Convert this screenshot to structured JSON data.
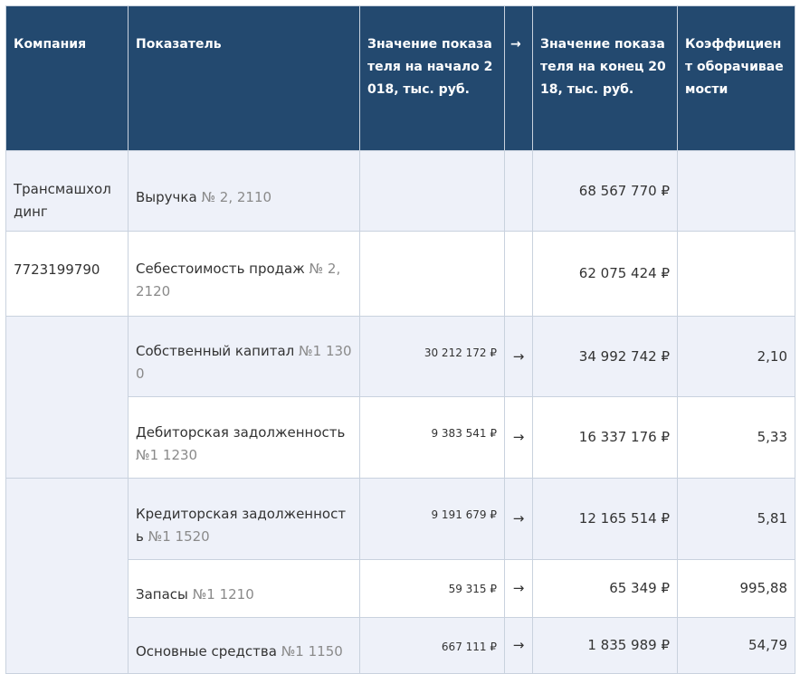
{
  "header": [
    "Компания",
    "Показатель",
    "Значение показателя на начало 2018, тыс. руб.",
    "→",
    "Значение показателя на конец 2018, тыс. руб.",
    "Коэффициент оборачиваемости"
  ],
  "rows": [
    {
      "company": "Трансмашхолдинг",
      "indicator": "Выручка",
      "code": "№ 2, 2110",
      "end": "68 567 770 ₽"
    },
    {
      "company": "7723199790",
      "indicator": "Себестоимость продаж",
      "code": "№ 2, 2120",
      "end": "62 075 424 ₽"
    },
    {
      "indicator": "Собственный капитал",
      "code": "№1 1300",
      "start": "30 212 172 ₽",
      "arrow": "→",
      "end": "34 992 742 ₽",
      "ratio": "2,10"
    },
    {
      "indicator": "Дебиторская задолженность",
      "code": "№1 1230",
      "start": "9 383 541 ₽",
      "arrow": "→",
      "end": "16 337 176 ₽",
      "ratio": "5,33"
    },
    {
      "indicator": "Кредиторская задолженность",
      "code": "№1 1520",
      "start": "9 191 679 ₽",
      "arrow": "→",
      "end": "12 165 514 ₽",
      "ratio": "5,81"
    },
    {
      "indicator": "Запасы",
      "code": "№1 1210",
      "start": "59 315 ₽",
      "arrow": "→",
      "end": "65 349 ₽",
      "ratio": "995,88"
    },
    {
      "indicator": "Основные средства",
      "code": "№1 1150",
      "start": "667 111 ₽",
      "arrow": "→",
      "end": "1 835 989 ₽",
      "ratio": "54,79"
    }
  ]
}
